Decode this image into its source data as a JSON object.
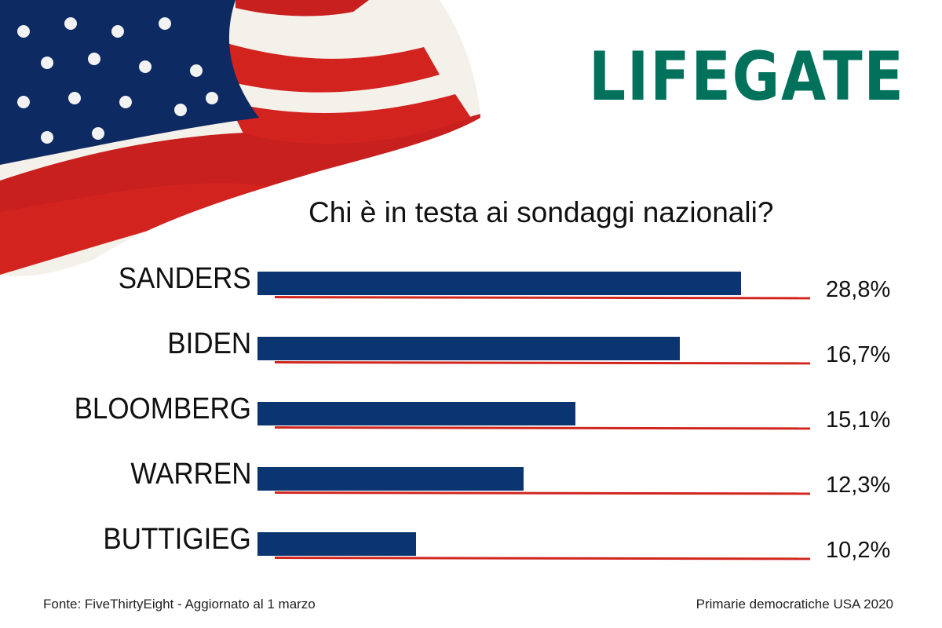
{
  "logo": "LIFEGATE",
  "colors": {
    "bar": "#0a3571",
    "line": "#d1261e",
    "logo": "#00715a"
  },
  "chart_data": {
    "type": "bar",
    "orientation": "horizontal",
    "title": "Chi è in testa ai sondaggi nazionali?",
    "categories": [
      "SANDERS",
      "BIDEN",
      "BLOOMBERG",
      "WARREN",
      "BUTTIGIEG"
    ],
    "value_labels": [
      "28,8%",
      "16,7%",
      "15,1%",
      "12,3%",
      "10,2%"
    ],
    "values": [
      28.8,
      16.7,
      15.1,
      12.3,
      10.2
    ],
    "bar_fill": [
      0.875,
      0.764,
      0.575,
      0.482,
      0.287
    ]
  },
  "footer": {
    "source": "Fonte: FiveThirtyEight  - Aggiornato al 1 marzo",
    "subtitle": "Primarie democratiche USA 2020"
  }
}
